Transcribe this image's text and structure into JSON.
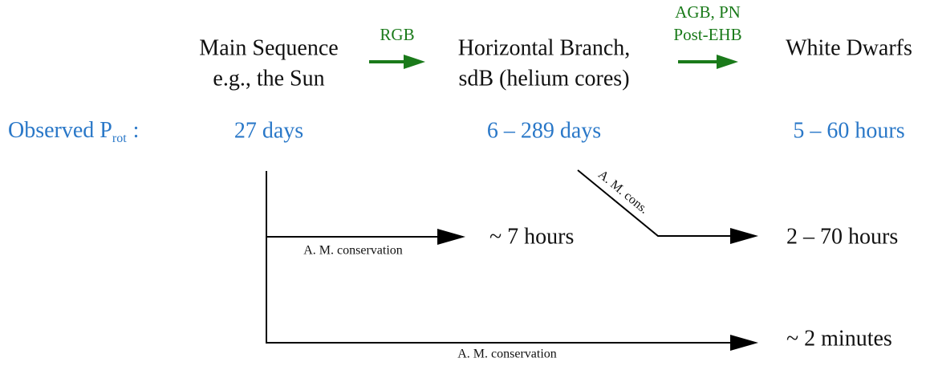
{
  "stages": [
    {
      "lines": [
        "Main Sequence",
        "e.g., the Sun"
      ]
    },
    {
      "lines": [
        "Horizontal Branch,",
        "sdB (helium cores)"
      ]
    },
    {
      "lines": [
        "White Dwarfs"
      ]
    }
  ],
  "transitions": [
    {
      "lines": [
        "RGB"
      ]
    },
    {
      "lines": [
        "AGB, PN",
        "Post-EHB"
      ]
    }
  ],
  "observed": {
    "label": "Observed P",
    "subscript": "rot",
    "suffix": ":",
    "values": [
      "27 days",
      "6 – 289 days",
      "5 – 60 hours"
    ]
  },
  "predictions": [
    {
      "arrow_label": "A. M. conservation",
      "result": "~ 7 hours"
    },
    {
      "arrow_label": "A. M. cons.",
      "result": "2 – 70 hours"
    },
    {
      "arrow_label": "A. M. conservation",
      "result": "~ 2 minutes"
    }
  ]
}
